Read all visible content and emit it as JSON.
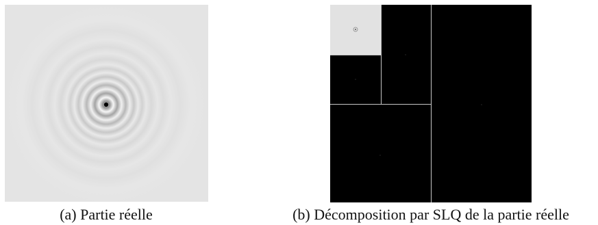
{
  "figure": {
    "panel_a": {
      "caption": "(a) Partie réelle"
    },
    "panel_b": {
      "caption": "(b) Décomposition par SLQ de la partie réelle"
    }
  },
  "colors": {
    "background_light": "#e6e6e6",
    "ring_dark": "#9a9a9a",
    "block_dark": "#000000",
    "block_light": "#e2e2e2",
    "separator": "#c8c8c8"
  }
}
